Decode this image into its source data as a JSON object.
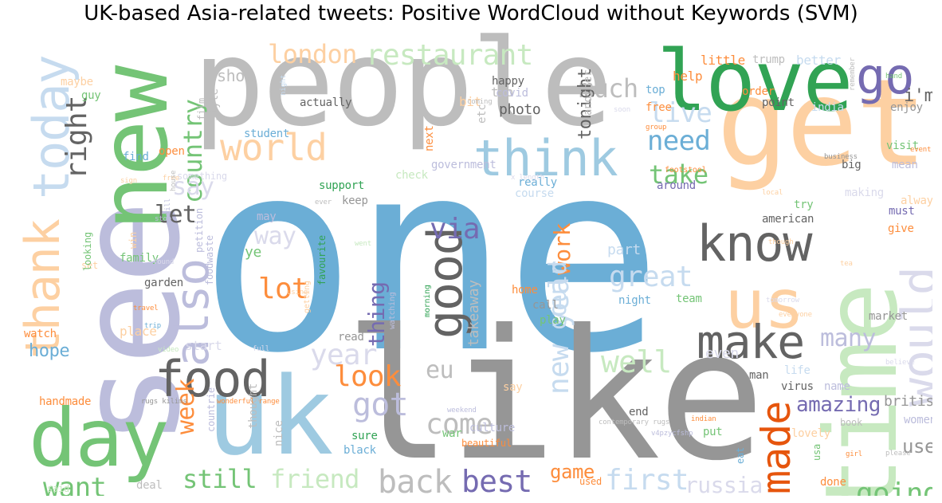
{
  "title": "UK-based Asia-related tweets: Positive WordCloud without Keywords (SVM)",
  "words": [
    "one",
    "like",
    "people",
    "see",
    "get",
    "new",
    "time",
    "uk",
    "love",
    "day",
    "today",
    "thank",
    "us",
    "know",
    "also",
    "food",
    "go",
    "world",
    "think",
    "good",
    "make",
    "would",
    "made",
    "lot",
    "well",
    "going",
    "back",
    "best",
    "still",
    "friend",
    "want",
    "come",
    "got",
    "first",
    "restaurant",
    "london",
    "country",
    "much",
    "need",
    "take",
    "say",
    "way",
    "great",
    "look",
    "year",
    "new year",
    "via",
    "work",
    "thing",
    "live",
    "let",
    "right",
    "many",
    "week",
    "amazing",
    "eu",
    "could",
    "russia",
    "hope",
    "game",
    "use",
    "british",
    "help",
    "little",
    "trump",
    "better",
    "i'm",
    "tonight",
    "two",
    "show",
    "happy",
    "photo",
    "covid",
    "bit",
    "student",
    "actually",
    "style",
    "guy",
    "maybe",
    "etc",
    "next",
    "another",
    "open",
    "find",
    "support",
    "government",
    "check",
    "really",
    "keep",
    "course",
    "around",
    "mean",
    "visit",
    "enjoy",
    "india",
    "point",
    "order",
    "top",
    "free",
    "big",
    "try",
    "alway",
    "making",
    "must",
    "give",
    "american",
    "may",
    "part",
    "ye",
    "takeaway",
    "even",
    "life",
    "market",
    "family",
    "watch",
    "place",
    "read",
    "call",
    "play",
    "home",
    "night",
    "team",
    "start",
    "say",
    "sure",
    "black",
    "nice",
    "handmade",
    "countrie",
    "thought",
    "end",
    "put",
    "lovely",
    "book",
    "women",
    "name",
    "virus",
    "man",
    "eat",
    "usa",
    "done",
    "used",
    "deal",
    "said",
    "culture",
    "war",
    "beautiful",
    "favourite",
    "watching",
    "morning",
    "getting",
    "garden",
    "set",
    "win",
    "film",
    "something",
    "petition",
    "looking",
    "foodwaste",
    "footstool",
    "free",
    "rugs kilims",
    "wonderful range",
    "contemporary rugs",
    "weekend",
    "indian",
    "v4pzycfshp",
    "girl",
    "please",
    "called",
    "believe",
    "tea",
    "everyone",
    "tomorrow",
    "though",
    "event",
    "business",
    "local",
    "group",
    "hand",
    "remember",
    "soon",
    "coming",
    "night",
    "full",
    "x length",
    "sign",
    "stop",
    "went",
    "found",
    "travel",
    "using",
    "trip",
    "video",
    "house",
    "ever",
    "will",
    "long",
    "far",
    "word"
  ],
  "colors": {
    "blue_mid": "#6baed6",
    "grey": "#969696",
    "grey_light": "#bdbdbd",
    "green": "#74c476",
    "green_dark": "#31a354",
    "orange_light": "#fdd0a2",
    "orange": "#fd8d3c",
    "orange_dark": "#e6550d",
    "purple": "#756bb1",
    "purple_light": "#bcbddc",
    "purple_pale": "#dadaeb",
    "blue_light": "#9ecae1",
    "blue_pale": "#c6dbef",
    "green_light": "#c7e9c0",
    "grey_dark": "#636363"
  }
}
